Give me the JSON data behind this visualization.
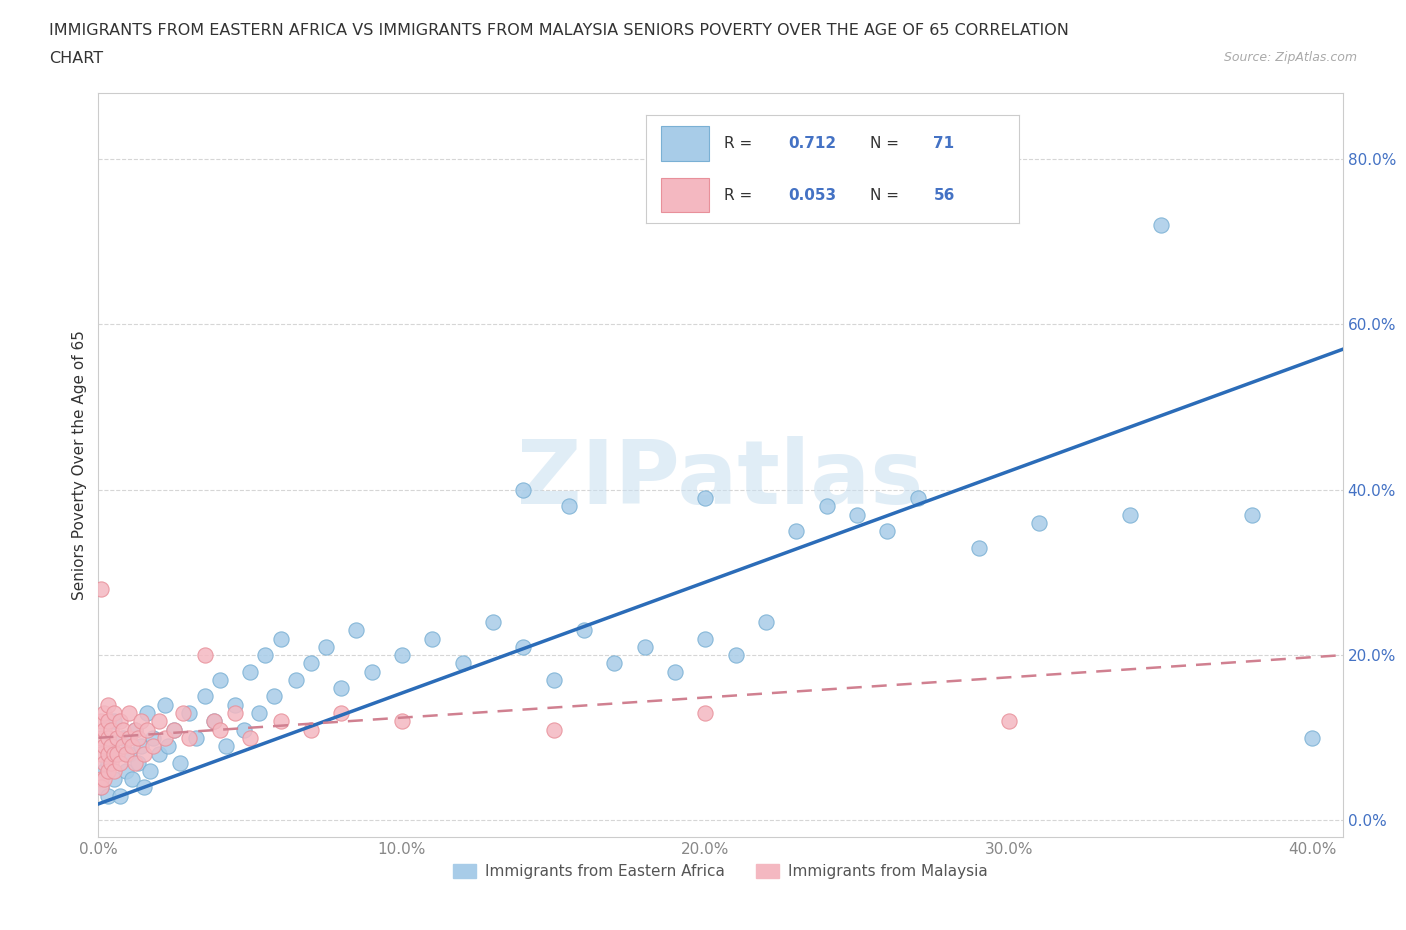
{
  "title_line1": "IMMIGRANTS FROM EASTERN AFRICA VS IMMIGRANTS FROM MALAYSIA SENIORS POVERTY OVER THE AGE OF 65 CORRELATION",
  "title_line2": "CHART",
  "source_text": "Source: ZipAtlas.com",
  "ylabel": "Seniors Poverty Over the Age of 65",
  "R_blue": 0.712,
  "N_blue": 71,
  "R_pink": 0.053,
  "N_pink": 56,
  "blue_color": "#a8cce8",
  "blue_edge_color": "#7ab0d4",
  "pink_color": "#f4b8c1",
  "pink_edge_color": "#e8909a",
  "blue_line_color": "#2b6cb8",
  "pink_line_color": "#c0405a",
  "pink_line_dash_color": "#d08090",
  "watermark": "ZIPatlas",
  "legend_label_blue": "Immigrants from Eastern Africa",
  "legend_label_pink": "Immigrants from Malaysia",
  "label_color_blue": "#4472c4",
  "label_color_pink": "#4472c4",
  "grid_color": "#cccccc",
  "background_color": "#ffffff",
  "title_color": "#333333",
  "ylabel_color": "#333333",
  "ytick_color": "#4472c4",
  "xtick_color": "#888888",
  "xlim": [
    0.0,
    0.41
  ],
  "ylim": [
    -0.02,
    0.88
  ],
  "blue_line_x0": 0.0,
  "blue_line_y0": 0.02,
  "blue_line_x1": 0.41,
  "blue_line_y1": 0.57,
  "pink_line_x0": 0.0,
  "pink_line_y0": 0.1,
  "pink_line_x1": 0.41,
  "pink_line_y1": 0.2,
  "blue_points": [
    [
      0.001,
      0.04
    ],
    [
      0.002,
      0.06
    ],
    [
      0.003,
      0.07
    ],
    [
      0.003,
      0.03
    ],
    [
      0.004,
      0.09
    ],
    [
      0.005,
      0.05
    ],
    [
      0.005,
      0.12
    ],
    [
      0.006,
      0.08
    ],
    [
      0.007,
      0.03
    ],
    [
      0.008,
      0.1
    ],
    [
      0.009,
      0.06
    ],
    [
      0.01,
      0.08
    ],
    [
      0.011,
      0.05
    ],
    [
      0.012,
      0.11
    ],
    [
      0.013,
      0.07
    ],
    [
      0.014,
      0.09
    ],
    [
      0.015,
      0.04
    ],
    [
      0.016,
      0.13
    ],
    [
      0.017,
      0.06
    ],
    [
      0.018,
      0.1
    ],
    [
      0.02,
      0.08
    ],
    [
      0.022,
      0.14
    ],
    [
      0.023,
      0.09
    ],
    [
      0.025,
      0.11
    ],
    [
      0.027,
      0.07
    ],
    [
      0.03,
      0.13
    ],
    [
      0.032,
      0.1
    ],
    [
      0.035,
      0.15
    ],
    [
      0.038,
      0.12
    ],
    [
      0.04,
      0.17
    ],
    [
      0.042,
      0.09
    ],
    [
      0.045,
      0.14
    ],
    [
      0.048,
      0.11
    ],
    [
      0.05,
      0.18
    ],
    [
      0.053,
      0.13
    ],
    [
      0.055,
      0.2
    ],
    [
      0.058,
      0.15
    ],
    [
      0.06,
      0.22
    ],
    [
      0.065,
      0.17
    ],
    [
      0.07,
      0.19
    ],
    [
      0.075,
      0.21
    ],
    [
      0.08,
      0.16
    ],
    [
      0.085,
      0.23
    ],
    [
      0.09,
      0.18
    ],
    [
      0.1,
      0.2
    ],
    [
      0.11,
      0.22
    ],
    [
      0.12,
      0.19
    ],
    [
      0.13,
      0.24
    ],
    [
      0.14,
      0.21
    ],
    [
      0.15,
      0.17
    ],
    [
      0.16,
      0.23
    ],
    [
      0.17,
      0.19
    ],
    [
      0.18,
      0.21
    ],
    [
      0.19,
      0.18
    ],
    [
      0.2,
      0.22
    ],
    [
      0.21,
      0.2
    ],
    [
      0.22,
      0.24
    ],
    [
      0.14,
      0.4
    ],
    [
      0.155,
      0.38
    ],
    [
      0.2,
      0.39
    ],
    [
      0.23,
      0.35
    ],
    [
      0.24,
      0.38
    ],
    [
      0.25,
      0.37
    ],
    [
      0.26,
      0.35
    ],
    [
      0.27,
      0.39
    ],
    [
      0.29,
      0.33
    ],
    [
      0.31,
      0.36
    ],
    [
      0.34,
      0.37
    ],
    [
      0.35,
      0.72
    ],
    [
      0.38,
      0.37
    ],
    [
      0.4,
      0.1
    ]
  ],
  "pink_points": [
    [
      0.001,
      0.05
    ],
    [
      0.001,
      0.08
    ],
    [
      0.001,
      0.1
    ],
    [
      0.001,
      0.12
    ],
    [
      0.001,
      0.04
    ],
    [
      0.002,
      0.09
    ],
    [
      0.002,
      0.07
    ],
    [
      0.002,
      0.11
    ],
    [
      0.002,
      0.13
    ],
    [
      0.002,
      0.05
    ],
    [
      0.003,
      0.08
    ],
    [
      0.003,
      0.1
    ],
    [
      0.003,
      0.06
    ],
    [
      0.003,
      0.12
    ],
    [
      0.003,
      0.14
    ],
    [
      0.004,
      0.09
    ],
    [
      0.004,
      0.07
    ],
    [
      0.004,
      0.11
    ],
    [
      0.005,
      0.08
    ],
    [
      0.005,
      0.13
    ],
    [
      0.005,
      0.06
    ],
    [
      0.006,
      0.1
    ],
    [
      0.006,
      0.08
    ],
    [
      0.007,
      0.12
    ],
    [
      0.007,
      0.07
    ],
    [
      0.008,
      0.09
    ],
    [
      0.008,
      0.11
    ],
    [
      0.009,
      0.08
    ],
    [
      0.01,
      0.1
    ],
    [
      0.01,
      0.13
    ],
    [
      0.011,
      0.09
    ],
    [
      0.012,
      0.11
    ],
    [
      0.012,
      0.07
    ],
    [
      0.013,
      0.1
    ],
    [
      0.014,
      0.12
    ],
    [
      0.015,
      0.08
    ],
    [
      0.016,
      0.11
    ],
    [
      0.018,
      0.09
    ],
    [
      0.02,
      0.12
    ],
    [
      0.022,
      0.1
    ],
    [
      0.025,
      0.11
    ],
    [
      0.028,
      0.13
    ],
    [
      0.03,
      0.1
    ],
    [
      0.035,
      0.2
    ],
    [
      0.038,
      0.12
    ],
    [
      0.04,
      0.11
    ],
    [
      0.045,
      0.13
    ],
    [
      0.05,
      0.1
    ],
    [
      0.001,
      0.28
    ],
    [
      0.06,
      0.12
    ],
    [
      0.07,
      0.11
    ],
    [
      0.08,
      0.13
    ],
    [
      0.1,
      0.12
    ],
    [
      0.15,
      0.11
    ],
    [
      0.2,
      0.13
    ],
    [
      0.3,
      0.12
    ]
  ]
}
